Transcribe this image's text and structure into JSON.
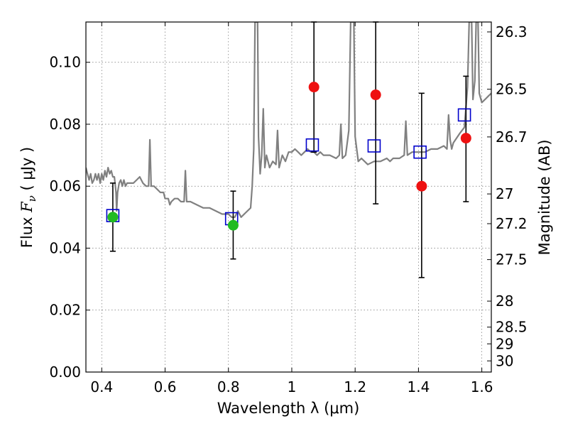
{
  "chart_data": {
    "type": "scatter",
    "title": "",
    "xlabel": "Wavelength  λ (μm)",
    "ylabel": "Flux  F_ν  ( μJy )",
    "ylabel_right": "Magnitude (AB)",
    "xlim": [
      0.35,
      1.63
    ],
    "ylim": [
      0.0,
      0.113
    ],
    "grid": true,
    "x_ticks": [
      {
        "value": 0.4,
        "label": "0.4"
      },
      {
        "value": 0.6,
        "label": "0.6"
      },
      {
        "value": 0.8,
        "label": "0.8"
      },
      {
        "value": 1.0,
        "label": "1"
      },
      {
        "value": 1.2,
        "label": "1.2"
      },
      {
        "value": 1.4,
        "label": "1.4"
      },
      {
        "value": 1.6,
        "label": "1.6"
      }
    ],
    "y_ticks": [
      {
        "value": 0.0,
        "label": "0.00"
      },
      {
        "value": 0.02,
        "label": "0.02"
      },
      {
        "value": 0.04,
        "label": "0.04"
      },
      {
        "value": 0.06,
        "label": "0.06"
      },
      {
        "value": 0.08,
        "label": "0.08"
      },
      {
        "value": 0.1,
        "label": "0.10"
      }
    ],
    "right_ticks": [
      {
        "label": "26.3",
        "flux": 0.1098
      },
      {
        "label": "26.5",
        "flux": 0.0913
      },
      {
        "label": "26.7",
        "flux": 0.0759
      },
      {
        "label": "27",
        "flux": 0.0575
      },
      {
        "label": "27.2",
        "flux": 0.0479
      },
      {
        "label": "27.5",
        "flux": 0.0363
      },
      {
        "label": "28",
        "flux": 0.0229
      },
      {
        "label": "28.5",
        "flux": 0.0145
      },
      {
        "label": "29",
        "flux": 0.0091
      },
      {
        "label": "30",
        "flux": 0.0036
      }
    ],
    "series": [
      {
        "type": "line",
        "color": "#808080",
        "points": [
          [
            0.35,
            0.066
          ],
          [
            0.355,
            0.064
          ],
          [
            0.36,
            0.062
          ],
          [
            0.365,
            0.064
          ],
          [
            0.37,
            0.061
          ],
          [
            0.375,
            0.062
          ],
          [
            0.38,
            0.064
          ],
          [
            0.385,
            0.062
          ],
          [
            0.39,
            0.064
          ],
          [
            0.395,
            0.061
          ],
          [
            0.4,
            0.064
          ],
          [
            0.405,
            0.062
          ],
          [
            0.41,
            0.065
          ],
          [
            0.415,
            0.063
          ],
          [
            0.42,
            0.066
          ],
          [
            0.425,
            0.064
          ],
          [
            0.43,
            0.065
          ],
          [
            0.435,
            0.063
          ],
          [
            0.44,
            0.063
          ],
          [
            0.445,
            0.058
          ],
          [
            0.447,
            0.052
          ],
          [
            0.45,
            0.058
          ],
          [
            0.455,
            0.061
          ],
          [
            0.46,
            0.062
          ],
          [
            0.465,
            0.06
          ],
          [
            0.47,
            0.062
          ],
          [
            0.475,
            0.06
          ],
          [
            0.48,
            0.061
          ],
          [
            0.49,
            0.061
          ],
          [
            0.5,
            0.061
          ],
          [
            0.51,
            0.062
          ],
          [
            0.52,
            0.063
          ],
          [
            0.53,
            0.061
          ],
          [
            0.54,
            0.06
          ],
          [
            0.548,
            0.06
          ],
          [
            0.552,
            0.075
          ],
          [
            0.556,
            0.06
          ],
          [
            0.565,
            0.06
          ],
          [
            0.575,
            0.059
          ],
          [
            0.585,
            0.058
          ],
          [
            0.595,
            0.058
          ],
          [
            0.6,
            0.056
          ],
          [
            0.61,
            0.056
          ],
          [
            0.615,
            0.054
          ],
          [
            0.62,
            0.055
          ],
          [
            0.63,
            0.056
          ],
          [
            0.64,
            0.056
          ],
          [
            0.65,
            0.055
          ],
          [
            0.66,
            0.055
          ],
          [
            0.664,
            0.065
          ],
          [
            0.668,
            0.055
          ],
          [
            0.68,
            0.055
          ],
          [
            0.7,
            0.054
          ],
          [
            0.72,
            0.053
          ],
          [
            0.74,
            0.053
          ],
          [
            0.76,
            0.052
          ],
          [
            0.78,
            0.051
          ],
          [
            0.8,
            0.051
          ],
          [
            0.81,
            0.05
          ],
          [
            0.82,
            0.05
          ],
          [
            0.83,
            0.052
          ],
          [
            0.84,
            0.05
          ],
          [
            0.85,
            0.051
          ],
          [
            0.86,
            0.052
          ],
          [
            0.87,
            0.053
          ],
          [
            0.875,
            0.06
          ],
          [
            0.88,
            0.072
          ],
          [
            0.884,
            0.113
          ],
          [
            0.892,
            0.113
          ],
          [
            0.895,
            0.076
          ],
          [
            0.9,
            0.064
          ],
          [
            0.905,
            0.07
          ],
          [
            0.91,
            0.085
          ],
          [
            0.915,
            0.066
          ],
          [
            0.92,
            0.07
          ],
          [
            0.93,
            0.066
          ],
          [
            0.94,
            0.068
          ],
          [
            0.95,
            0.067
          ],
          [
            0.955,
            0.078
          ],
          [
            0.96,
            0.066
          ],
          [
            0.97,
            0.07
          ],
          [
            0.98,
            0.068
          ],
          [
            0.99,
            0.071
          ],
          [
            1.0,
            0.071
          ],
          [
            1.01,
            0.072
          ],
          [
            1.02,
            0.071
          ],
          [
            1.03,
            0.07
          ],
          [
            1.04,
            0.071
          ],
          [
            1.05,
            0.072
          ],
          [
            1.06,
            0.071
          ],
          [
            1.07,
            0.071
          ],
          [
            1.08,
            0.07
          ],
          [
            1.09,
            0.071
          ],
          [
            1.1,
            0.07
          ],
          [
            1.12,
            0.07
          ],
          [
            1.14,
            0.069
          ],
          [
            1.15,
            0.07
          ],
          [
            1.155,
            0.08
          ],
          [
            1.16,
            0.069
          ],
          [
            1.17,
            0.07
          ],
          [
            1.18,
            0.078
          ],
          [
            1.186,
            0.113
          ],
          [
            1.196,
            0.113
          ],
          [
            1.2,
            0.076
          ],
          [
            1.21,
            0.068
          ],
          [
            1.22,
            0.069
          ],
          [
            1.24,
            0.067
          ],
          [
            1.26,
            0.068
          ],
          [
            1.28,
            0.068
          ],
          [
            1.3,
            0.069
          ],
          [
            1.31,
            0.068
          ],
          [
            1.32,
            0.069
          ],
          [
            1.34,
            0.069
          ],
          [
            1.355,
            0.07
          ],
          [
            1.36,
            0.081
          ],
          [
            1.365,
            0.07
          ],
          [
            1.38,
            0.071
          ],
          [
            1.4,
            0.071
          ],
          [
            1.42,
            0.071
          ],
          [
            1.44,
            0.072
          ],
          [
            1.46,
            0.072
          ],
          [
            1.48,
            0.073
          ],
          [
            1.49,
            0.072
          ],
          [
            1.495,
            0.083
          ],
          [
            1.5,
            0.075
          ],
          [
            1.505,
            0.072
          ],
          [
            1.51,
            0.074
          ],
          [
            1.53,
            0.077
          ],
          [
            1.545,
            0.079
          ],
          [
            1.555,
            0.092
          ],
          [
            1.56,
            0.113
          ],
          [
            1.568,
            0.113
          ],
          [
            1.572,
            0.088
          ],
          [
            1.578,
            0.094
          ],
          [
            1.582,
            0.113
          ],
          [
            1.588,
            0.113
          ],
          [
            1.592,
            0.09
          ],
          [
            1.6,
            0.087
          ],
          [
            1.61,
            0.088
          ],
          [
            1.62,
            0.089
          ],
          [
            1.63,
            0.09
          ]
        ]
      },
      {
        "type": "scatter",
        "marker": "open-square",
        "color": "#0000cc",
        "points": [
          {
            "x": 0.435,
            "y": 0.0505
          },
          {
            "x": 0.81,
            "y": 0.0495
          },
          {
            "x": 1.065,
            "y": 0.0733
          },
          {
            "x": 1.26,
            "y": 0.073
          },
          {
            "x": 1.405,
            "y": 0.071
          },
          {
            "x": 1.545,
            "y": 0.083
          }
        ]
      },
      {
        "type": "scatter",
        "marker": "circle",
        "color": "#22bb22",
        "points": [
          {
            "x": 0.435,
            "y": 0.05,
            "err_low": 0.039,
            "err_high": 0.061
          },
          {
            "x": 0.815,
            "y": 0.0474,
            "err_low": 0.0365,
            "err_high": 0.0584
          }
        ]
      },
      {
        "type": "scatter",
        "marker": "circle",
        "color": "#ee1111",
        "points": [
          {
            "x": 1.07,
            "y": 0.092,
            "err_low": 0.071,
            "err_high": 0.113
          },
          {
            "x": 1.265,
            "y": 0.0895,
            "err_low": 0.0543,
            "err_high": 0.113
          },
          {
            "x": 1.41,
            "y": 0.06,
            "err_low": 0.0305,
            "err_high": 0.09
          },
          {
            "x": 1.55,
            "y": 0.0755,
            "err_low": 0.055,
            "err_high": 0.0955
          }
        ]
      }
    ]
  }
}
